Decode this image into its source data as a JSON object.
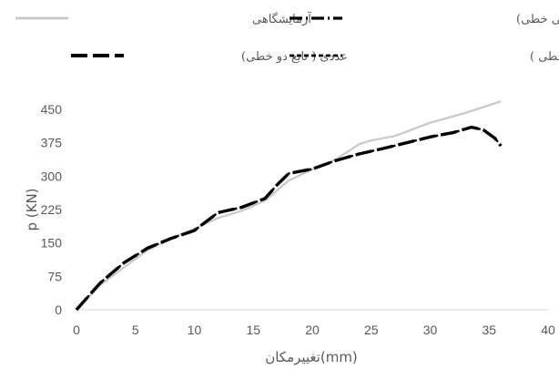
{
  "chart_data": {
    "type": "line",
    "xlabel": "تغییرمکان(mm)",
    "ylabel": "p (KN)",
    "xlim": [
      0,
      40
    ],
    "ylim": [
      0,
      450
    ],
    "x_ticks": [
      0,
      5,
      10,
      15,
      20,
      25,
      30,
      35,
      40
    ],
    "y_ticks": [
      0,
      75,
      150,
      225,
      300,
      375,
      450
    ],
    "grid": false,
    "legend_placement": "top",
    "series": [
      {
        "name": "آزمایشگاهی",
        "color": "#c8c8c8",
        "style": "solid",
        "x": [
          0,
          2,
          4,
          6,
          8,
          10,
          12,
          14,
          16,
          18,
          20,
          22,
          24,
          25,
          27,
          30,
          33,
          36
        ],
        "y": [
          0,
          55,
          95,
          133,
          160,
          182,
          206,
          222,
          245,
          290,
          315,
          338,
          372,
          380,
          390,
          420,
          442,
          468
        ]
      },
      {
        "name": "عددی(تابع نرمی خطی)",
        "color": "#000000",
        "style": "dash-dot",
        "x": [
          0,
          2,
          4,
          6,
          8,
          10,
          12,
          14,
          16,
          17,
          18,
          20,
          22,
          24,
          26,
          28,
          30,
          32,
          33.5,
          34.5,
          35.5,
          36
        ],
        "y": [
          0,
          60,
          105,
          138,
          160,
          178,
          218,
          230,
          250,
          280,
          306,
          316,
          335,
          350,
          362,
          375,
          388,
          398,
          410,
          404,
          385,
          368
        ]
      },
      {
        "name": "عددی ( تابع دو خطی)",
        "color": "#000000",
        "style": "long-dash",
        "x": [
          0,
          2,
          4,
          6,
          8,
          10,
          12,
          14,
          16,
          17,
          18,
          20,
          22,
          24,
          26,
          28,
          30,
          32,
          33.5,
          34.5,
          35.5,
          36
        ],
        "y": [
          0,
          60,
          105,
          138,
          160,
          178,
          218,
          230,
          250,
          280,
          306,
          316,
          335,
          350,
          362,
          375,
          388,
          398,
          410,
          404,
          385,
          368
        ]
      },
      {
        "name": "عددی ( تابع نرمی غیر خطی )",
        "color": "#000000",
        "style": "short-dash",
        "x": [
          0,
          2,
          4,
          6,
          8,
          10,
          12,
          14,
          16,
          17,
          18,
          20,
          22,
          24,
          26,
          28,
          30,
          32,
          33.5,
          34.5,
          35.5,
          36
        ],
        "y": [
          0,
          60,
          105,
          138,
          160,
          178,
          218,
          230,
          250,
          280,
          306,
          316,
          335,
          350,
          362,
          375,
          388,
          398,
          410,
          404,
          385,
          368
        ]
      }
    ]
  }
}
